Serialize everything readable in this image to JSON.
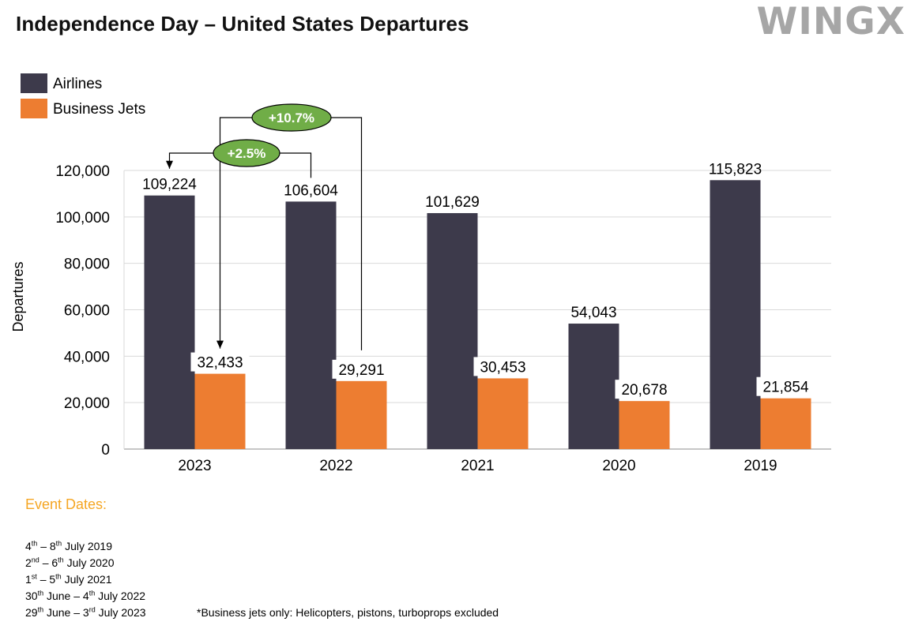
{
  "header": {
    "title": "Independence Day – United States Departures",
    "logo_text": "WINGX"
  },
  "chart_data": {
    "type": "bar",
    "title": "Independence Day – United States Departures",
    "ylabel": "Departures",
    "xlabel": "",
    "categories": [
      "2023",
      "2022",
      "2021",
      "2020",
      "2019"
    ],
    "series": [
      {
        "name": "Airlines",
        "color": "#3d3a4b",
        "values": [
          109224,
          106604,
          101629,
          54043,
          115823
        ],
        "labels": [
          "109,224",
          "106,604",
          "101,629",
          "54,043",
          "115,823"
        ]
      },
      {
        "name": "Business Jets",
        "color": "#ed7d31",
        "values": [
          32433,
          29291,
          30453,
          20678,
          21854
        ],
        "labels": [
          "32,433",
          "29,291",
          "30,453",
          "20,678",
          "21,854"
        ]
      }
    ],
    "ylim": [
      0,
      120000
    ],
    "yticks": [
      0,
      20000,
      40000,
      60000,
      80000,
      100000,
      120000
    ],
    "ytick_labels": [
      "0",
      "20,000",
      "40,000",
      "60,000",
      "80,000",
      "100,000",
      "120,000"
    ],
    "grid": true,
    "legend_position": "top-left",
    "annotations": [
      {
        "text": "+10.7%",
        "from_category": "2022",
        "to_category": "2023",
        "series": "Business Jets",
        "color": "#70ad47"
      },
      {
        "text": "+2.5%",
        "from_category": "2022",
        "to_category": "2023",
        "series": "Airlines",
        "color": "#70ad47"
      }
    ]
  },
  "event_dates": {
    "title": "Event Dates:",
    "items": [
      {
        "a": "4",
        "a_sup": "th",
        "b": " – 8",
        "b_sup": "th",
        "c": " July 2019"
      },
      {
        "a": "2",
        "a_sup": "nd",
        "b": " – 6",
        "b_sup": "th",
        "c": " July 2020"
      },
      {
        "a": "1",
        "a_sup": "st",
        "b": " – 5",
        "b_sup": "th",
        "c": " July 2021"
      },
      {
        "a": "30",
        "a_sup": "th",
        "b": " June – 4",
        "b_sup": "th",
        "c": " July 2022"
      },
      {
        "a": "29",
        "a_sup": "th",
        "b": " June – 3",
        "b_sup": "rd",
        "c": " July 2023"
      }
    ]
  },
  "footnote": "*Business jets only: Helicopters, pistons, turboprops excluded"
}
